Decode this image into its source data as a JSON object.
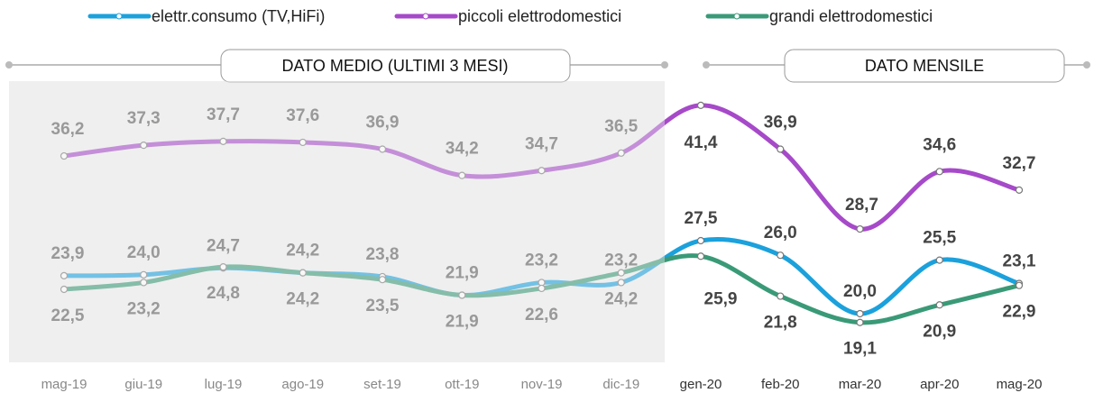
{
  "chart_data": {
    "type": "line",
    "categories": [
      "mag-19",
      "giu-19",
      "lug-19",
      "ago-19",
      "set-19",
      "ott-19",
      "nov-19",
      "dic-19",
      "gen-20",
      "feb-20",
      "mar-20",
      "apr-20",
      "mag-20"
    ],
    "sections": [
      "DATO MEDIO (ULTIMI 3 MESI)",
      "DATO MENSILE"
    ],
    "series": [
      {
        "name": "elettr.consumo (TV,HiFi)",
        "color": "#1ba1dc",
        "values": [
          23.9,
          24.0,
          24.7,
          24.2,
          23.8,
          21.9,
          23.2,
          23.2,
          27.5,
          26.0,
          20.0,
          25.5,
          23.1
        ],
        "value_labels": [
          "23,9",
          "24,0",
          "24,7",
          "24,2",
          "23,8",
          "21,9",
          "23,2",
          "23,2",
          "27,5",
          "26,0",
          "20,0",
          "25,5",
          "23,1"
        ]
      },
      {
        "name": "piccoli elettrodomestici",
        "color": "#a64ac9",
        "values": [
          36.2,
          37.3,
          37.7,
          37.6,
          36.9,
          34.2,
          34.7,
          36.5,
          41.4,
          36.9,
          28.7,
          34.6,
          32.7
        ],
        "value_labels": [
          "36,2",
          "37,3",
          "37,7",
          "37,6",
          "36,9",
          "34,2",
          "34,7",
          "36,5",
          "41,4",
          "36,9",
          "28,7",
          "34,6",
          "32,7"
        ]
      },
      {
        "name": "grandi elettrodomestici",
        "color": "#3a9a78",
        "values": [
          22.5,
          23.2,
          24.8,
          24.2,
          23.5,
          21.9,
          22.6,
          24.2,
          25.9,
          21.8,
          19.1,
          20.9,
          22.9
        ],
        "value_labels": [
          "22,5",
          "23,2",
          "24,8",
          "24,2",
          "23,5",
          "21,9",
          "22,6",
          "24,2",
          "25,9",
          "21,8",
          "19,1",
          "20,9",
          "22,9"
        ]
      }
    ]
  }
}
